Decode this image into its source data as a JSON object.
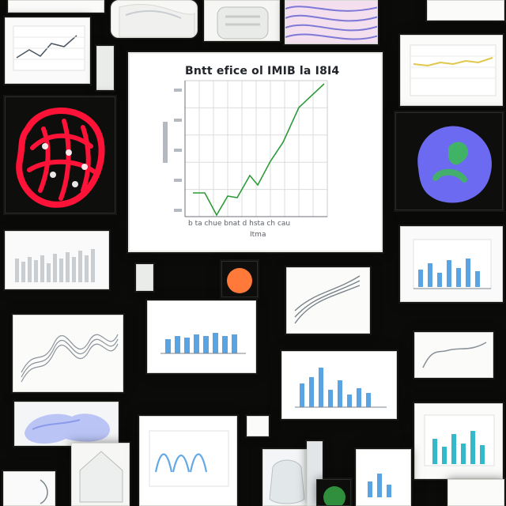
{
  "collage": {
    "main_chart": {
      "title": "Bntt efice ol IMIB la I8I4",
      "caption_line1": "b ta chue bnat d hsta ch cau",
      "caption_line2": "Itma",
      "colors": {
        "line": "#2d9b39",
        "grid": "#d9dde0",
        "axis": "#6c7279"
      }
    },
    "thumbnail_colors": {
      "red_network": "#ff1238",
      "blue_protein": "#6b6af0",
      "orange_dot": "#ff7a3a",
      "bar_blue": "#4a9be2",
      "teal": "#1fb2c6"
    }
  }
}
